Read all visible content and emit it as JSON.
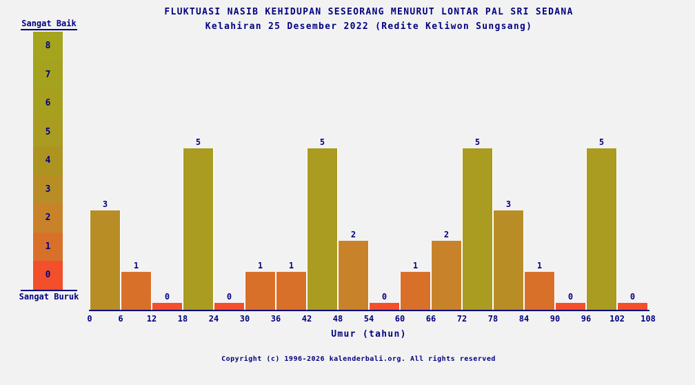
{
  "title": "FLUKTUASI NASIB KEHIDUPAN SESEORANG MENURUT LONTAR PAL SRI SEDANA",
  "subtitle": "Kelahiran 25 Desember 2022 (Redite Keliwon Sungsang)",
  "colors": {
    "background": "#f2f2f2",
    "text": "#000080",
    "axis": "#000080",
    "bar_gap": "#ffffff",
    "value_colors": [
      "#f24f2a",
      "#d9702a",
      "#c8832a",
      "#b88d26",
      "#ad9421",
      "#a99c20",
      "#a7a01f",
      "#a5a21e",
      "#a4a41d"
    ]
  },
  "scale_legend": {
    "top_label": "Sangat Baik",
    "bottom_label": "Sangat Buruk",
    "levels": [
      8,
      7,
      6,
      5,
      4,
      3,
      2,
      1,
      0
    ]
  },
  "chart_data": {
    "type": "bar",
    "x_ticks": [
      0,
      6,
      12,
      18,
      24,
      30,
      36,
      42,
      48,
      54,
      60,
      66,
      72,
      78,
      84,
      90,
      96,
      102,
      108
    ],
    "bar_interval_years": 6,
    "values": [
      3,
      1,
      0,
      5,
      0,
      1,
      1,
      5,
      2,
      0,
      1,
      2,
      5,
      3,
      1,
      0,
      5,
      0
    ],
    "value_labels_shown": true,
    "xlabel": "Umur (tahun)",
    "ylim": [
      0,
      8
    ],
    "grid": false,
    "legend_position": "left"
  },
  "footer": {
    "copyright": "Copyright (c) 1996-2026 kalenderbali.org. All rights reserved"
  }
}
